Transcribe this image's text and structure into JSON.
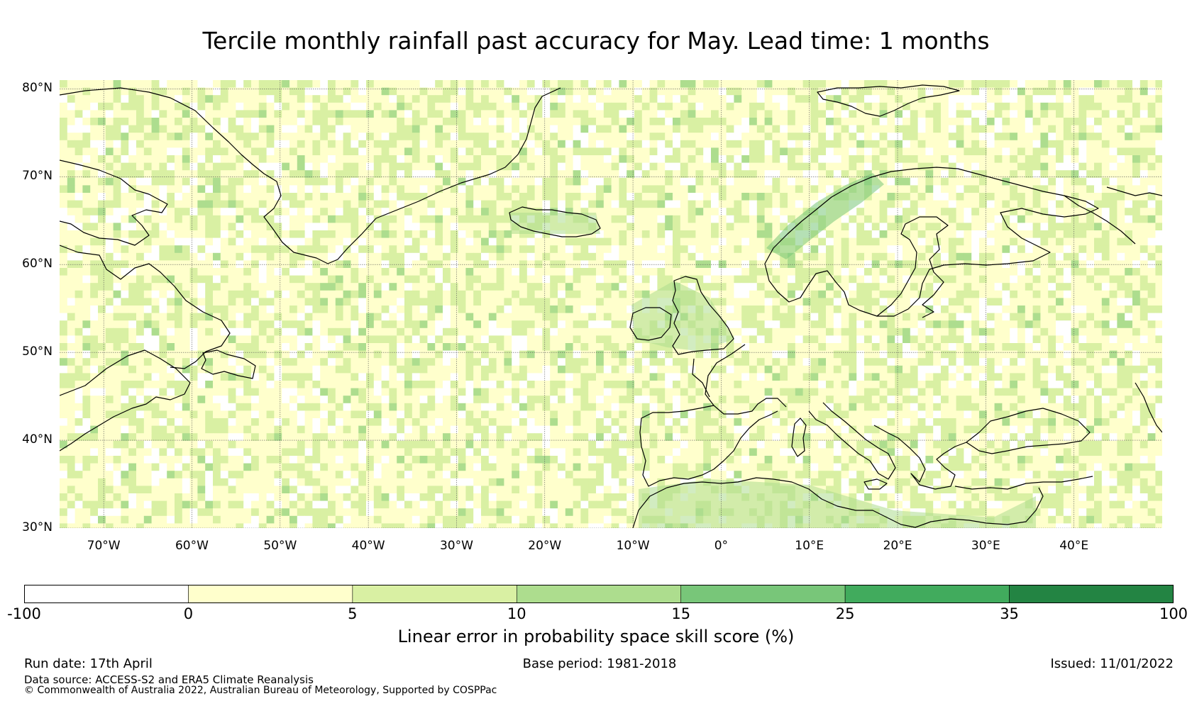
{
  "title": "Tercile monthly rainfall past accuracy for May. Lead time: 1 months",
  "map": {
    "extent": {
      "lon_min": -75,
      "lon_max": 50,
      "lat_min": 30,
      "lat_max": 81
    },
    "lat_ticks": [
      {
        "value": 80,
        "label": "80°N"
      },
      {
        "value": 70,
        "label": "70°N"
      },
      {
        "value": 60,
        "label": "60°N"
      },
      {
        "value": 50,
        "label": "50°N"
      },
      {
        "value": 40,
        "label": "40°N"
      },
      {
        "value": 30,
        "label": "30°N"
      }
    ],
    "lon_ticks": [
      {
        "value": -70,
        "label": "70°W"
      },
      {
        "value": -60,
        "label": "60°W"
      },
      {
        "value": -50,
        "label": "50°W"
      },
      {
        "value": -40,
        "label": "40°W"
      },
      {
        "value": -30,
        "label": "30°W"
      },
      {
        "value": -20,
        "label": "20°W"
      },
      {
        "value": -10,
        "label": "10°W"
      },
      {
        "value": 0,
        "label": "0°"
      },
      {
        "value": 10,
        "label": "10°E"
      },
      {
        "value": 20,
        "label": "20°E"
      },
      {
        "value": 30,
        "label": "30°E"
      },
      {
        "value": 40,
        "label": "40°E"
      }
    ],
    "field": "Linear error in probability space skill score (%)",
    "background_category": "0-5",
    "higher_skill_regions": [
      {
        "area": "Norway coast",
        "category": "15-25"
      },
      {
        "area": "British Isles",
        "category": "10-15"
      },
      {
        "area": "Iceland",
        "category": "10-15"
      },
      {
        "area": "North Africa",
        "category": "5-15"
      }
    ]
  },
  "colorbar": {
    "label": "Linear error in probability space skill score (%)",
    "ticks": [
      "-100",
      "0",
      "5",
      "10",
      "15",
      "25",
      "35",
      "100"
    ],
    "bins": [
      {
        "range": "-100 to 0",
        "color": "#ffffff"
      },
      {
        "range": "0 to 5",
        "color": "#ffffcc"
      },
      {
        "range": "5 to 10",
        "color": "#d9f0a3"
      },
      {
        "range": "10 to 15",
        "color": "#addd8e"
      },
      {
        "range": "15 to 25",
        "color": "#78c679"
      },
      {
        "range": "25 to 35",
        "color": "#41ab5d"
      },
      {
        "range": "35 to 100",
        "color": "#238443"
      }
    ]
  },
  "footer": {
    "run_date": "Run date: 17th April",
    "base_period": "Base period: 1981-2018",
    "issued": "Issued: 11/01/2022",
    "data_source": "Data source: ACCESS-S2 and ERA5 Climate Reanalysis",
    "copyright": "© Commonwealth of Australia 2022, Australian Bureau of Meteorology, Supported by COSPPac"
  }
}
